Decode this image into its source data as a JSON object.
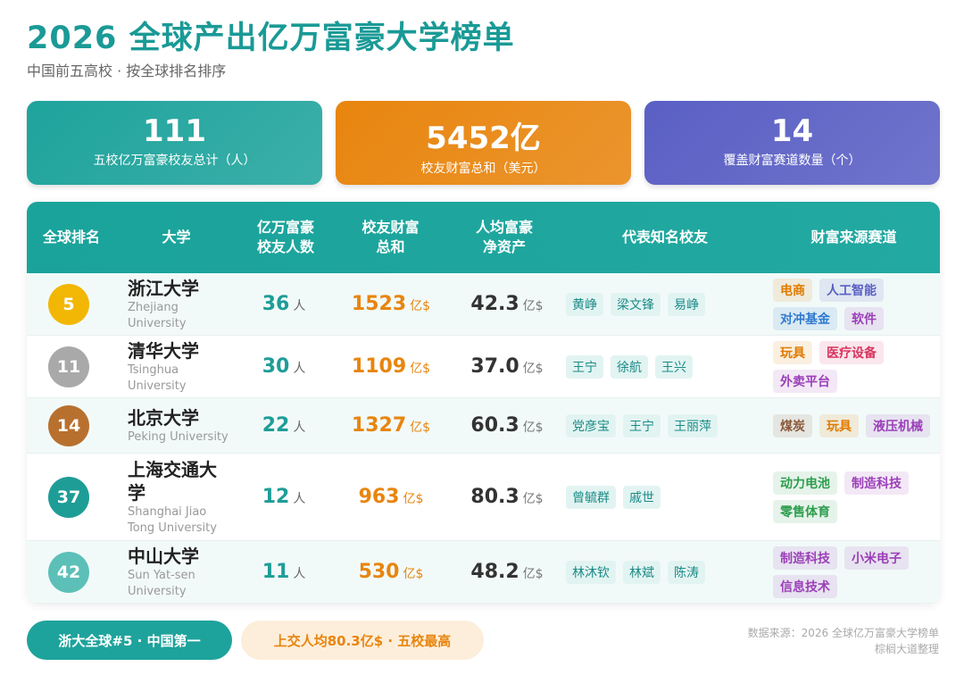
{
  "header": {
    "title": "2026 全球产出亿万富豪大学榜单",
    "subtitle": "中国前五高校 · 按全球排名排序"
  },
  "cards": [
    {
      "value": "111",
      "label": "五校亿万富豪校友总计（人）",
      "color": "#1ea39c"
    },
    {
      "value": "5452亿",
      "label": "校友财富总和（美元）",
      "color": "#e8850e"
    },
    {
      "value": "14",
      "label": "覆盖财富赛道数量（个）",
      "color": "#5a5fc4"
    }
  ],
  "table": {
    "columns": [
      "全球排名",
      "大学",
      "亿万富豪\n校友人数",
      "校友财富\n总和",
      "人均富豪\n净资产",
      "代表知名校友",
      "财富来源赛道"
    ],
    "units": {
      "count": "人",
      "wealth": "亿$",
      "avg": "亿$"
    },
    "rows": [
      {
        "rank": "5",
        "rank_color": "#f2b705",
        "name": "浙江大学",
        "name_en": "Zhejiang University",
        "count": "36",
        "wealth": "1523",
        "avg": "42.3",
        "alumni": [
          "黄峥",
          "梁文锋",
          "易峥"
        ],
        "sectors": [
          {
            "label": "电商",
            "color": "#e07b00"
          },
          {
            "label": "人工智能",
            "color": "#5a5fc4"
          },
          {
            "label": "对冲基金",
            "color": "#2f7ad0"
          },
          {
            "label": "软件",
            "color": "#9b3fb8"
          }
        ]
      },
      {
        "rank": "11",
        "rank_color": "#a9a9a9",
        "name": "清华大学",
        "name_en": "Tsinghua University",
        "count": "30",
        "wealth": "1109",
        "avg": "37.0",
        "alumni": [
          "王宁",
          "徐航",
          "王兴"
        ],
        "sectors": [
          {
            "label": "玩具",
            "color": "#e07b00"
          },
          {
            "label": "医疗设备",
            "color": "#d8345f"
          },
          {
            "label": "外卖平台",
            "color": "#9b3fb8"
          }
        ]
      },
      {
        "rank": "14",
        "rank_color": "#b8702e",
        "name": "北京大学",
        "name_en": "Peking University",
        "count": "22",
        "wealth": "1327",
        "avg": "60.3",
        "alumni": [
          "党彦宝",
          "王宁",
          "王丽萍"
        ],
        "sectors": [
          {
            "label": "煤炭",
            "color": "#8a5a3a"
          },
          {
            "label": "玩具",
            "color": "#e07b00"
          },
          {
            "label": "液压机械",
            "color": "#9b3fb8"
          }
        ]
      },
      {
        "rank": "37",
        "rank_color": "#1e9d97",
        "name": "上海交通大学",
        "name_en": "Shanghai Jiao Tong University",
        "count": "12",
        "wealth": "963",
        "avg": "80.3",
        "alumni": [
          "曾毓群",
          "戚世"
        ],
        "sectors": [
          {
            "label": "动力电池",
            "color": "#2e9e4f"
          },
          {
            "label": "制造科技",
            "color": "#9b3fb8"
          },
          {
            "label": "零售体育",
            "color": "#2e9e4f"
          }
        ]
      },
      {
        "rank": "42",
        "rank_color": "#5cc0b8",
        "name": "中山大学",
        "name_en": "Sun Yat-sen University",
        "count": "11",
        "wealth": "530",
        "avg": "48.2",
        "alumni": [
          "林沐钦",
          "林斌",
          "陈涛"
        ],
        "sectors": [
          {
            "label": "制造科技",
            "color": "#9b3fb8"
          },
          {
            "label": "小米电子",
            "color": "#9b3fb8"
          },
          {
            "label": "信息技术",
            "color": "#9b3fb8"
          }
        ]
      }
    ]
  },
  "footer": {
    "badges": [
      "浙大全球#5 · 中国第一",
      "上交人均80.3亿$ · 五校最高"
    ],
    "source": "数据来源：2026 全球亿万富豪大学榜单",
    "credit": "棕榈大道整理"
  }
}
